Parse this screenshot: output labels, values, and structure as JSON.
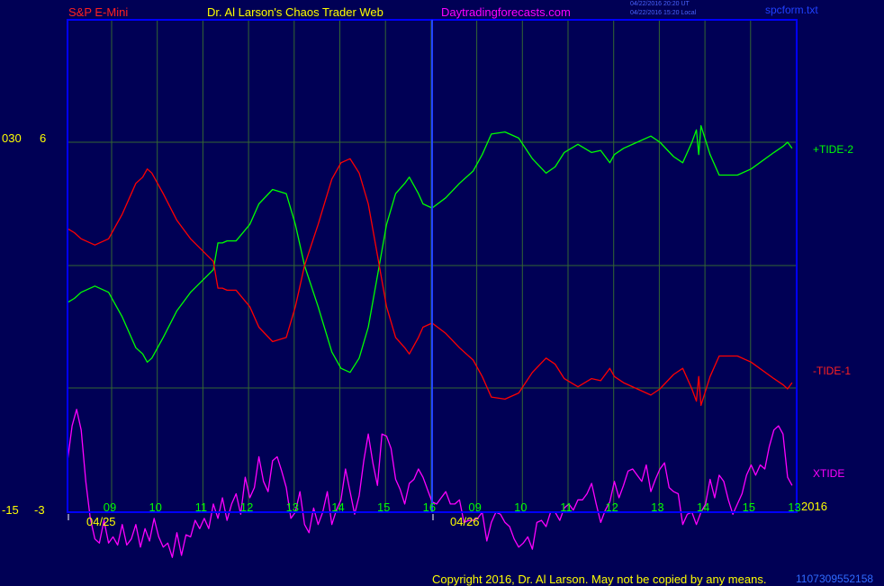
{
  "header": {
    "symbol": "S&P E-Mini",
    "site_title": "Dr. Al Larson's Chaos Trader Web",
    "site_url": "Daytradingforecasts.com",
    "timestamp_ut": "04/22/2016 20:20 UT",
    "timestamp_local": "04/22/2016 15:20 Local",
    "file_name": "spcform.txt"
  },
  "footer": {
    "copyright": "Copyright 2016, Dr. Al Larson. May not be copied by any means.",
    "version": "1107",
    "id_number": "309552158"
  },
  "axis_left": {
    "upper_label_1": "030",
    "upper_label_2": "6",
    "lower_label_1": "-15",
    "lower_label_2": "-3"
  },
  "colors": {
    "background": "#000055",
    "frame": "#0000ff",
    "grid": "#336633",
    "tide_plus": "#00ff00",
    "tide_minus": "#ff0000",
    "xtide": "#ff00ff",
    "hour_labels": "#00ff00",
    "date_labels": "#ffff00"
  },
  "chart_data": {
    "type": "line",
    "x_hour_ticks": [
      "09",
      "10",
      "11",
      "12",
      "13",
      "14",
      "15",
      "16",
      "09",
      "10",
      "11",
      "12",
      "13",
      "14",
      "15",
      "13"
    ],
    "dates": [
      "04/25",
      "04/26"
    ],
    "year_label": "2016",
    "grid": true,
    "legend_placement": "right",
    "series": [
      {
        "name": "+TIDE-2",
        "color": "#00ff00",
        "x": [
          0,
          0.15,
          0.3,
          0.6,
          0.9,
          1.2,
          1.5,
          1.65,
          1.75,
          1.85,
          2.1,
          2.4,
          2.7,
          3.2,
          3.3,
          3.4,
          3.5,
          3.7,
          4.0,
          4.2,
          4.5,
          4.8,
          5.0,
          5.2,
          5.5,
          5.8,
          6.0,
          6.2,
          6.4,
          6.6,
          6.8,
          7.0,
          7.2,
          7.4,
          7.5,
          7.7,
          7.8,
          8.0,
          8.3,
          8.6,
          8.9,
          9.1,
          9.3,
          9.6,
          9.9,
          10.2,
          10.5,
          10.7,
          10.9,
          11.2,
          11.5,
          11.7,
          11.8,
          11.9,
          12.0,
          12.2,
          12.5,
          12.8,
          13.0,
          13.3,
          13.5,
          13.7,
          13.8,
          13.85,
          13.9,
          14.1,
          14.3,
          14.7,
          15.0,
          15.5,
          15.7,
          15.8,
          15.9
        ],
        "values": [
          -1.8,
          -1.6,
          -1.3,
          -1.0,
          -1.3,
          -2.5,
          -4.0,
          -4.3,
          -4.7,
          -4.5,
          -3.5,
          -2.2,
          -1.3,
          -0.2,
          1.1,
          1.1,
          1.2,
          1.2,
          2.0,
          3.0,
          3.7,
          3.5,
          2.0,
          0,
          -2.0,
          -4.2,
          -5.0,
          -5.2,
          -4.5,
          -3.0,
          -0.5,
          2.0,
          3.5,
          4.0,
          4.3,
          3.5,
          3.0,
          2.8,
          3.3,
          4.0,
          4.6,
          5.4,
          6.4,
          6.5,
          6.2,
          5.2,
          4.5,
          4.8,
          5.5,
          5.9,
          5.5,
          5.6,
          5.3,
          5.0,
          5.4,
          5.7,
          6.0,
          6.3,
          6.0,
          5.3,
          5.0,
          6.0,
          6.6,
          5.4,
          6.8,
          5.4,
          4.4,
          4.4,
          4.7,
          5.5,
          5.8,
          6.0,
          5.7
        ]
      },
      {
        "name": "-TIDE-1",
        "color": "#ff0000",
        "x": [
          0,
          0.15,
          0.3,
          0.6,
          0.9,
          1.2,
          1.5,
          1.65,
          1.75,
          1.85,
          2.1,
          2.4,
          2.7,
          3.2,
          3.3,
          3.4,
          3.5,
          3.7,
          4.0,
          4.2,
          4.5,
          4.8,
          5.0,
          5.2,
          5.5,
          5.8,
          6.0,
          6.2,
          6.4,
          6.6,
          6.8,
          7.0,
          7.2,
          7.4,
          7.5,
          7.7,
          7.8,
          8.0,
          8.3,
          8.6,
          8.9,
          9.1,
          9.3,
          9.6,
          9.9,
          10.2,
          10.5,
          10.7,
          10.9,
          11.2,
          11.5,
          11.7,
          11.8,
          11.9,
          12.0,
          12.2,
          12.5,
          12.8,
          13.0,
          13.3,
          13.5,
          13.7,
          13.8,
          13.85,
          13.9,
          14.1,
          14.3,
          14.7,
          15.0,
          15.5,
          15.7,
          15.8,
          15.9
        ],
        "values": [
          1.8,
          1.6,
          1.3,
          1.0,
          1.3,
          2.5,
          4.0,
          4.3,
          4.7,
          4.5,
          3.5,
          2.2,
          1.3,
          0.2,
          -1.1,
          -1.1,
          -1.2,
          -1.2,
          -2.0,
          -3.0,
          -3.7,
          -3.5,
          -2.0,
          0,
          2.0,
          4.2,
          5.0,
          5.2,
          4.5,
          3.0,
          0.5,
          -2.0,
          -3.5,
          -4.0,
          -4.3,
          -3.5,
          -3.0,
          -2.8,
          -3.3,
          -4.0,
          -4.6,
          -5.4,
          -6.4,
          -6.5,
          -6.2,
          -5.2,
          -4.5,
          -4.8,
          -5.5,
          -5.9,
          -5.5,
          -5.6,
          -5.3,
          -5.0,
          -5.4,
          -5.7,
          -6.0,
          -6.3,
          -6.0,
          -5.3,
          -5.0,
          -6.0,
          -6.6,
          -5.4,
          -6.8,
          -5.4,
          -4.4,
          -4.4,
          -4.7,
          -5.5,
          -5.8,
          -6.0,
          -5.7
        ]
      },
      {
        "name": "XTIDE",
        "color": "#ff00ff",
        "x": [
          0,
          0.1,
          0.2,
          0.3,
          0.4,
          0.5,
          0.6,
          0.7,
          0.8,
          0.9,
          1.0,
          1.1,
          1.2,
          1.3,
          1.4,
          1.5,
          1.6,
          1.7,
          1.8,
          1.9,
          2.0,
          2.1,
          2.2,
          2.3,
          2.4,
          2.5,
          2.6,
          2.7,
          2.8,
          2.9,
          3.0,
          3.1,
          3.2,
          3.3,
          3.4,
          3.5,
          3.6,
          3.7,
          3.8,
          3.9,
          4.0,
          4.1,
          4.2,
          4.3,
          4.4,
          4.5,
          4.6,
          4.7,
          4.8,
          4.9,
          5.0,
          5.1,
          5.2,
          5.3,
          5.4,
          5.5,
          5.6,
          5.7,
          5.8,
          5.9,
          6.0,
          6.1,
          6.2,
          6.3,
          6.4,
          6.5,
          6.6,
          6.7,
          6.8,
          6.9,
          7.0,
          7.1,
          7.2,
          7.3,
          7.4,
          7.5,
          7.6,
          7.7,
          7.8,
          7.9,
          8.0,
          8.1,
          8.2,
          8.3,
          8.4,
          8.5,
          8.6,
          8.7,
          8.8,
          8.9,
          9.0,
          9.1,
          9.2,
          9.3,
          9.4,
          9.5,
          9.6,
          9.7,
          9.8,
          9.9,
          10.0,
          10.1,
          10.2,
          10.3,
          10.4,
          10.5,
          10.6,
          10.7,
          10.8,
          10.9,
          11.0,
          11.1,
          11.2,
          11.3,
          11.4,
          11.5,
          11.6,
          11.7,
          11.8,
          11.9,
          12.0,
          12.1,
          12.2,
          12.3,
          12.4,
          12.5,
          12.6,
          12.7,
          12.8,
          12.9,
          13.0,
          13.1,
          13.2,
          13.3,
          13.4,
          13.5,
          13.6,
          13.7,
          13.8,
          13.9,
          14.0,
          14.1,
          14.2,
          14.3,
          14.4,
          14.5,
          14.6,
          14.7,
          14.8,
          14.9,
          15.0,
          15.1,
          15.2,
          15.3,
          15.4,
          15.5,
          15.6,
          15.7,
          15.8,
          15.9
        ],
        "values": [
          -9.5,
          -7.8,
          -7.0,
          -8.0,
          -10.5,
          -12.3,
          -13.3,
          -13.5,
          -12.4,
          -13.5,
          -13.2,
          -13.6,
          -12.6,
          -13.6,
          -13.3,
          -12.6,
          -13.7,
          -12.8,
          -13.4,
          -12.3,
          -13.2,
          -13.7,
          -13.5,
          -14.2,
          -13.0,
          -14.1,
          -13.1,
          -13.2,
          -12.4,
          -12.8,
          -12.3,
          -12.8,
          -11.6,
          -12.3,
          -11.3,
          -12.4,
          -11.6,
          -11.1,
          -12.1,
          -10.3,
          -11.3,
          -10.8,
          -9.3,
          -10.5,
          -11.0,
          -9.5,
          -9.3,
          -10.0,
          -10.8,
          -12.3,
          -12.0,
          -11.0,
          -12.6,
          -13.0,
          -11.8,
          -12.6,
          -12.0,
          -11.0,
          -12.6,
          -11.9,
          -11.4,
          -9.9,
          -11.0,
          -12.1,
          -11.2,
          -9.5,
          -8.2,
          -9.6,
          -10.7,
          -8.2,
          -8.3,
          -8.9,
          -10.4,
          -10.9,
          -11.6,
          -10.6,
          -10.4,
          -9.9,
          -10.3,
          -10.9,
          -11.5,
          -11.6,
          -11.3,
          -11.0,
          -11.6,
          -11.6,
          -11.4,
          -12.5,
          -12.4,
          -12.4,
          -12.3,
          -12.0,
          -13.4,
          -12.5,
          -12.0,
          -12.1,
          -12.5,
          -12.7,
          -13.3,
          -13.7,
          -13.5,
          -13.2,
          -13.8,
          -12.5,
          -12.4,
          -12.7,
          -12.0,
          -12.0,
          -12.4,
          -11.8,
          -11.6,
          -11.9,
          -11.4,
          -11.4,
          -11.1,
          -10.6,
          -11.6,
          -12.5,
          -11.9,
          -11.5,
          -10.5,
          -11.3,
          -10.7,
          -10.0,
          -9.9,
          -10.2,
          -10.5,
          -9.7,
          -11.0,
          -10.4,
          -9.9,
          -9.6,
          -10.8,
          -11.0,
          -11.1,
          -12.6,
          -12.1,
          -12.0,
          -12.6,
          -12.0,
          -11.6,
          -10.4,
          -11.3,
          -10.2,
          -10.5,
          -11.4,
          -12.1,
          -11.6,
          -11.1,
          -10.2,
          -9.7,
          -10.2,
          -9.7,
          -9.9,
          -8.8,
          -8.0,
          -7.8,
          -8.2,
          -10.3,
          -10.7
        ]
      }
    ]
  }
}
